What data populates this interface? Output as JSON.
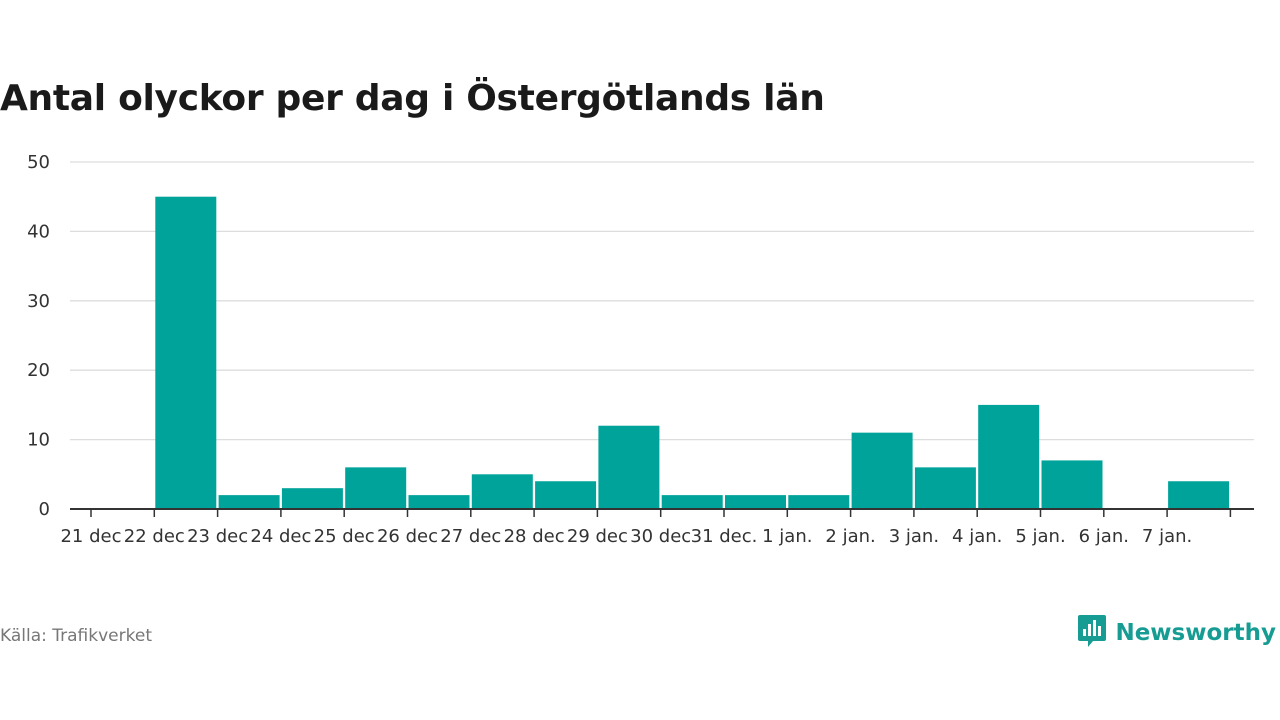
{
  "chart_data": {
    "type": "bar",
    "title": "Antal olyckor per dag i Östergötlands län",
    "categories": [
      "21 dec",
      "22 dec",
      "23 dec",
      "24 dec",
      "25 dec",
      "26 dec",
      "27 dec",
      "28 dec",
      "29 dec",
      "30 dec",
      "31 dec.",
      "1 jan.",
      "2 jan.",
      "3 jan.",
      "4 jan.",
      "5 jan.",
      "6 jan.",
      "7 jan."
    ],
    "values": [
      0,
      45,
      2,
      3,
      6,
      2,
      5,
      4,
      12,
      2,
      2,
      2,
      11,
      6,
      15,
      7,
      0,
      4
    ],
    "ylim": [
      0,
      50
    ],
    "yticks": [
      0,
      10,
      20,
      30,
      40,
      50
    ],
    "xlabel": "",
    "ylabel": "",
    "grid": true,
    "bar_color": "#00a39a"
  },
  "footer": {
    "source": "Källa: Trafikverket",
    "brand": "Newsworthy"
  },
  "colors": {
    "accent": "#169c92",
    "grid": "#dddddd",
    "axis": "#333333"
  },
  "icons": {
    "brand_logo": "newsworthy-logo-icon"
  }
}
